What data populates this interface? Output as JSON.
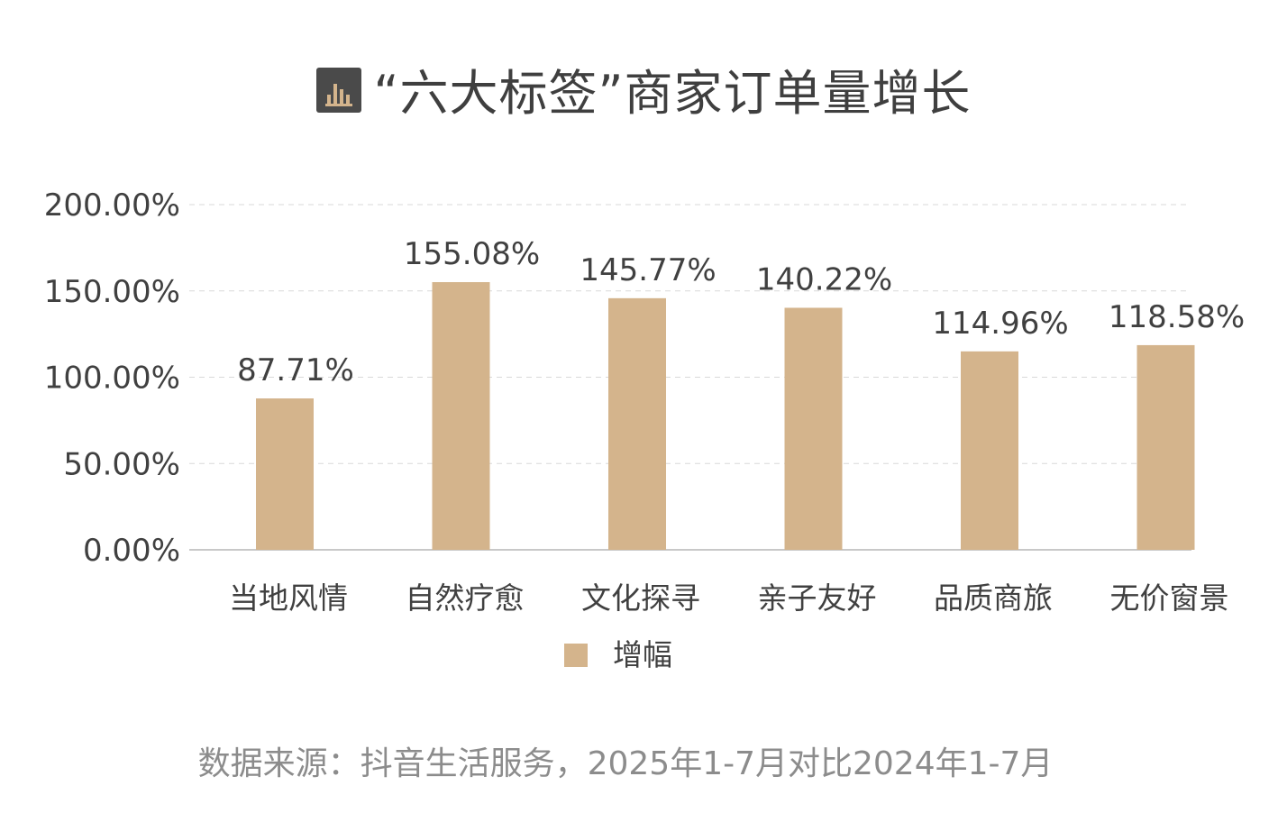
{
  "title": "“六大标签”商家订单量增长",
  "icon": "bar-chart-icon",
  "colors": {
    "bar": "#d4b48c",
    "text": "#404040",
    "grid": "#d9d9d9",
    "axis": "#c8c8c8",
    "source": "#8c8c8c"
  },
  "source": "数据来源：抖音生活服务，2025年1-7月对比2024年1-7月",
  "chart_data": {
    "type": "bar",
    "categories": [
      "当地风情",
      "自然疗愈",
      "文化探寻",
      "亲子友好",
      "品质商旅",
      "无价窗景"
    ],
    "series": [
      {
        "name": "增幅",
        "values": [
          87.71,
          155.08,
          145.77,
          140.22,
          114.96,
          118.58
        ],
        "labels": [
          "87.71%",
          "155.08%",
          "145.77%",
          "140.22%",
          "114.96%",
          "118.58%"
        ]
      }
    ],
    "yticks": [
      "0.00%",
      "50.00%",
      "100.00%",
      "150.00%",
      "200.00%"
    ],
    "ylim": [
      0,
      200
    ],
    "grid": true,
    "legend": "bottom-center"
  }
}
